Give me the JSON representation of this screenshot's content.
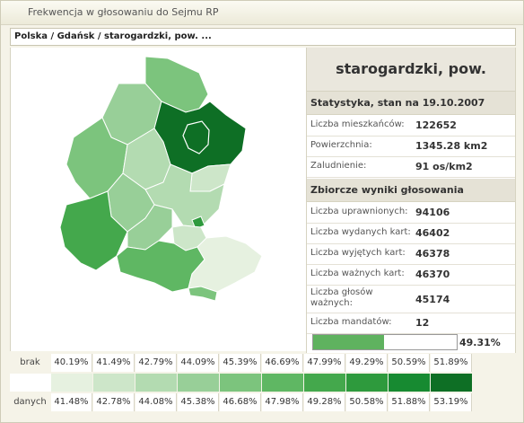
{
  "titlebar": {
    "title": "Frekwencja w głosowaniu do Sejmu RP"
  },
  "breadcrumb": "Polska / Gdańsk / starogardzki, pow. ...",
  "panel": {
    "title": "starogardzki, pow.",
    "stats_header": "Statystyka, stan na 19.10.2007",
    "stats": [
      {
        "label": "Liczba mieszkańców:",
        "value": "122652"
      },
      {
        "label": "Powierzchnia:",
        "value": "1345.28 km2"
      },
      {
        "label": "Zaludnienie:",
        "value": "91 os/km2"
      }
    ],
    "results_header": "Zbiorcze wyniki głosowania",
    "results": [
      {
        "label": "Liczba uprawnionych:",
        "value": "94106"
      },
      {
        "label": "Liczba wydanych kart:",
        "value": "46402"
      },
      {
        "label": "Liczba wyjętych kart:",
        "value": "46378"
      },
      {
        "label": "Liczba ważnych kart:",
        "value": "46370"
      },
      {
        "label": "Liczba głosów ważnych:",
        "value": "45174"
      },
      {
        "label": "Liczba mandatów:",
        "value": "12"
      }
    ],
    "turnout_percent": "49.31%",
    "turnout_fraction": 0.4931
  },
  "legend": {
    "label_top": "brak",
    "label_bottom": "danych",
    "lower": [
      "40.19%",
      "41.49%",
      "42.79%",
      "44.09%",
      "45.39%",
      "46.69%",
      "47.99%",
      "49.29%",
      "50.59%",
      "51.89%"
    ],
    "upper": [
      "41.48%",
      "42.78%",
      "44.08%",
      "45.38%",
      "46.68%",
      "47.98%",
      "49.28%",
      "50.58%",
      "51.88%",
      "53.19%"
    ],
    "colors": [
      "#e6f1e0",
      "#cde6c9",
      "#b3dbb1",
      "#98cf98",
      "#7cc47d",
      "#5fb763",
      "#44a84c",
      "#2e9a3d",
      "#178a31",
      "#0e6f25"
    ]
  }
}
